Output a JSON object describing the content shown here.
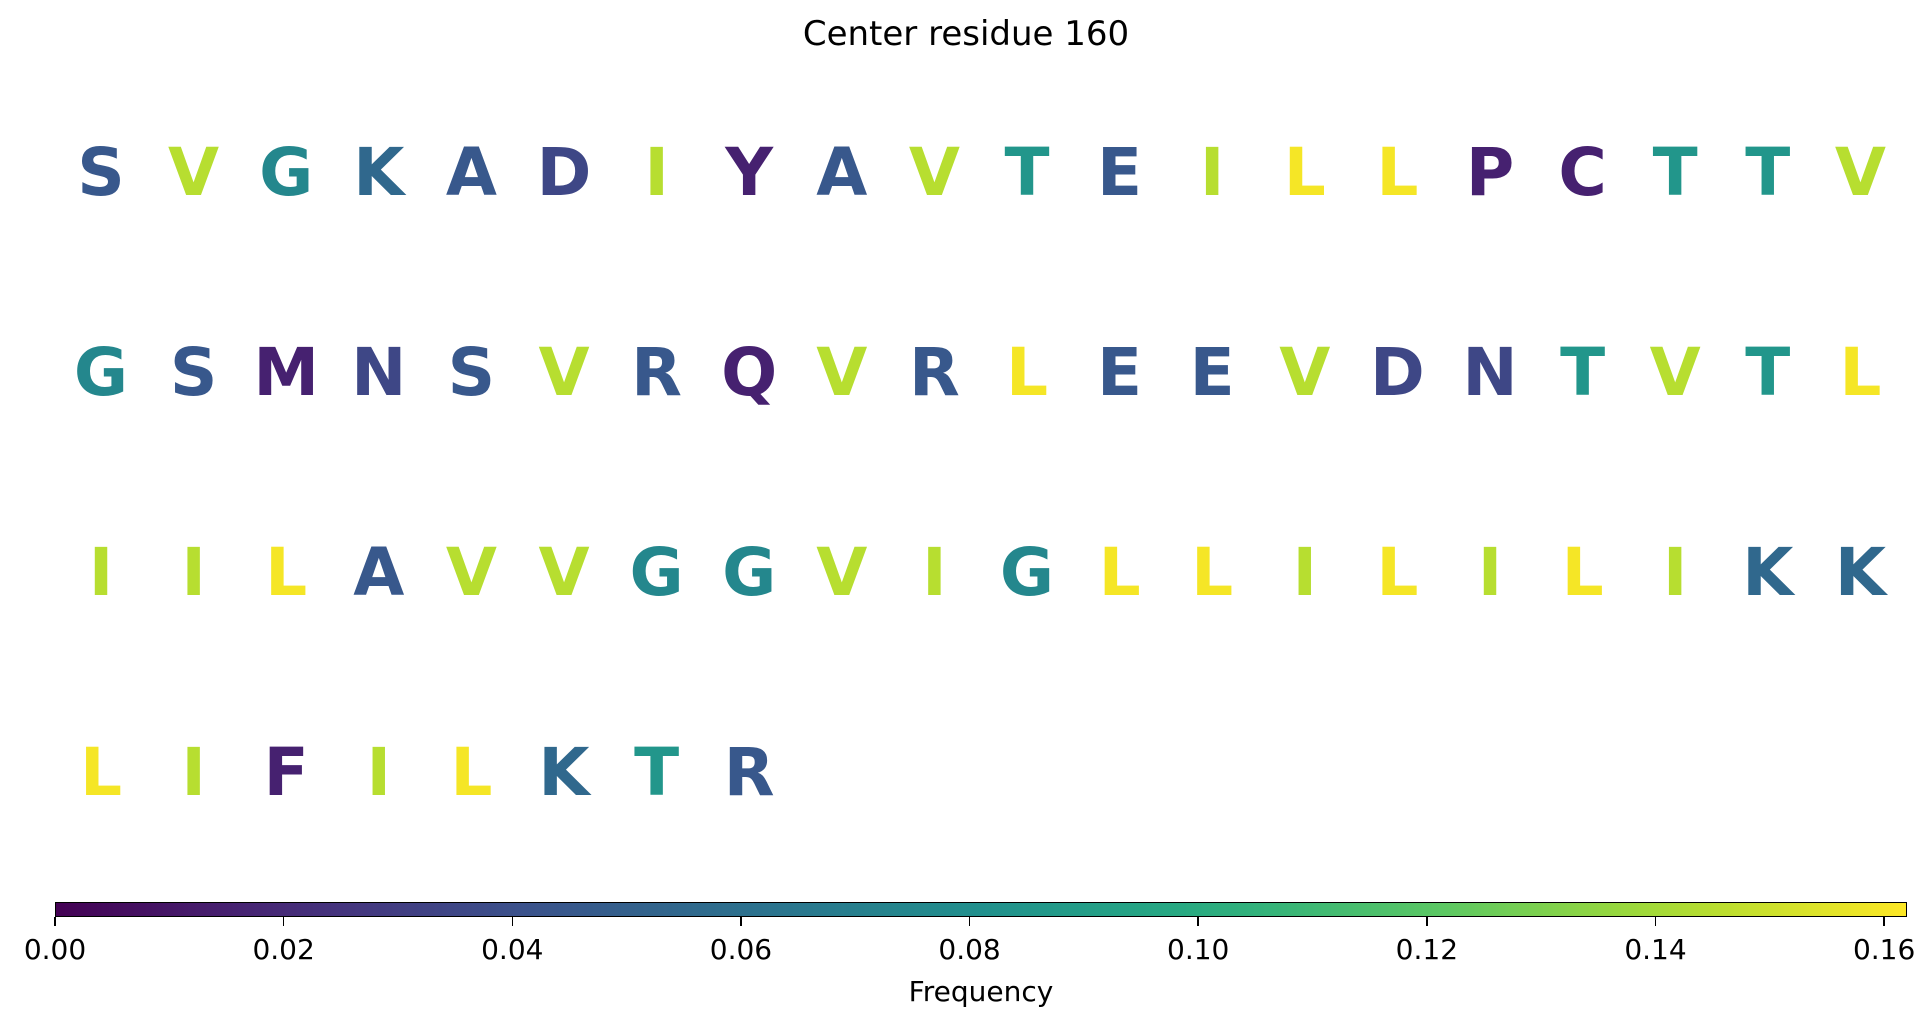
{
  "chart_data": {
    "type": "sequence-logo",
    "title": "Center residue 160",
    "colorbar": {
      "label": "Frequency",
      "range": [
        0,
        0.162
      ],
      "colormap": "viridis",
      "ticks": [
        "0.00",
        "0.02",
        "0.04",
        "0.06",
        "0.08",
        "0.10",
        "0.12",
        "0.14",
        "0.16"
      ],
      "tick_values": [
        0.0,
        0.02,
        0.04,
        0.06,
        0.08,
        0.1,
        0.12,
        0.14,
        0.16
      ]
    },
    "rows": [
      {
        "letters": [
          "S",
          "V",
          "G",
          "K",
          "A",
          "D",
          "I",
          "Y",
          "A",
          "V",
          "T",
          "E",
          "I",
          "L",
          "L",
          "P",
          "C",
          "T",
          "T",
          "V"
        ],
        "frequencies": [
          0.045,
          0.145,
          0.075,
          0.055,
          0.045,
          0.035,
          0.145,
          0.015,
          0.045,
          0.145,
          0.085,
          0.045,
          0.145,
          0.16,
          0.16,
          0.015,
          0.015,
          0.085,
          0.085,
          0.145
        ]
      },
      {
        "letters": [
          "G",
          "S",
          "M",
          "N",
          "S",
          "V",
          "R",
          "Q",
          "V",
          "R",
          "L",
          "E",
          "E",
          "V",
          "D",
          "N",
          "T",
          "V",
          "T",
          "L"
        ],
        "frequencies": [
          0.075,
          0.045,
          0.015,
          0.035,
          0.045,
          0.145,
          0.045,
          0.015,
          0.145,
          0.045,
          0.16,
          0.045,
          0.045,
          0.145,
          0.035,
          0.035,
          0.085,
          0.145,
          0.085,
          0.16
        ]
      },
      {
        "letters": [
          "I",
          "I",
          "L",
          "A",
          "V",
          "V",
          "G",
          "G",
          "V",
          "I",
          "G",
          "L",
          "L",
          "I",
          "L",
          "I",
          "L",
          "I",
          "K",
          "K"
        ],
        "frequencies": [
          0.145,
          0.145,
          0.16,
          0.045,
          0.145,
          0.145,
          0.075,
          0.075,
          0.145,
          0.145,
          0.075,
          0.16,
          0.16,
          0.145,
          0.16,
          0.145,
          0.16,
          0.145,
          0.055,
          0.055
        ]
      },
      {
        "letters": [
          "L",
          "I",
          "F",
          "I",
          "L",
          "K",
          "T",
          "R"
        ],
        "frequencies": [
          0.16,
          0.145,
          0.015,
          0.145,
          0.16,
          0.055,
          0.085,
          0.045
        ]
      }
    ]
  }
}
